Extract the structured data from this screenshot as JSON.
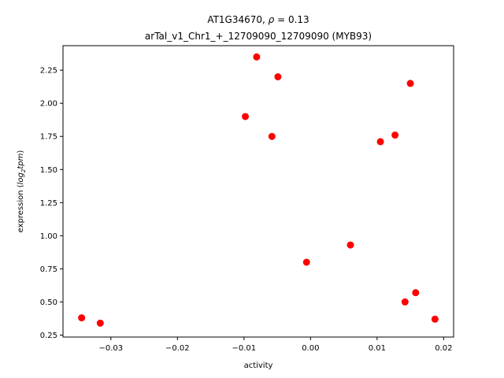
{
  "chart_data": {
    "type": "scatter",
    "title_line1_prefix": "AT1G34670, ",
    "title_rho_symbol": "ρ",
    "title_rho_value": " = 0.13",
    "title_line2": "arTal_v1_Chr1_+_12709090_12709090 (MYB93)",
    "xlabel": "activity",
    "ylabel_prefix": "expression (",
    "ylabel_math": "log",
    "ylabel_sub": "2",
    "ylabel_math2": "tpm",
    "ylabel_suffix": ")",
    "xlim": [
      -0.0372,
      0.0215
    ],
    "ylim": [
      0.235,
      2.435
    ],
    "xticks": [
      -0.03,
      -0.02,
      -0.01,
      0.0,
      0.01,
      0.02
    ],
    "xtick_labels": [
      "−0.03",
      "−0.02",
      "−0.01",
      "0.00",
      "0.01",
      "0.02"
    ],
    "yticks": [
      0.25,
      0.5,
      0.75,
      1.0,
      1.25,
      1.5,
      1.75,
      2.0,
      2.25
    ],
    "ytick_labels": [
      "0.25",
      "0.50",
      "0.75",
      "1.00",
      "1.25",
      "1.50",
      "1.75",
      "2.00",
      "2.25"
    ],
    "marker_color": "#ff0000",
    "grid": false,
    "points": [
      {
        "x": -0.0344,
        "y": 0.38
      },
      {
        "x": -0.0316,
        "y": 0.34
      },
      {
        "x": -0.0098,
        "y": 1.9
      },
      {
        "x": -0.0081,
        "y": 2.35
      },
      {
        "x": -0.0058,
        "y": 1.75
      },
      {
        "x": -0.0049,
        "y": 2.2
      },
      {
        "x": -0.0006,
        "y": 0.8
      },
      {
        "x": 0.006,
        "y": 0.93
      },
      {
        "x": 0.0105,
        "y": 1.71
      },
      {
        "x": 0.0127,
        "y": 1.76
      },
      {
        "x": 0.0142,
        "y": 0.5
      },
      {
        "x": 0.015,
        "y": 2.15
      },
      {
        "x": 0.0158,
        "y": 0.57
      },
      {
        "x": 0.0187,
        "y": 0.37
      }
    ]
  }
}
